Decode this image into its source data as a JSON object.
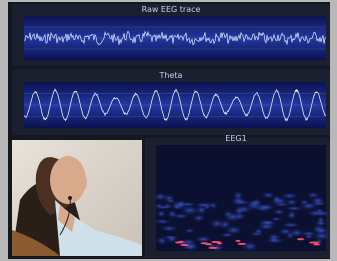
{
  "panels": [
    {
      "title": "Raw EEG trace"
    },
    {
      "title": "Theta"
    },
    {
      "title": "EEG1"
    }
  ]
}
